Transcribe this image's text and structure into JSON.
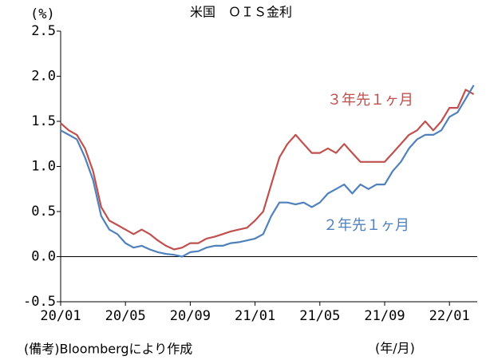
{
  "chart_data": {
    "type": "line",
    "title": "米国　ＯＩＳ金利",
    "y_unit": "(%)",
    "x_unit": "(年/月)",
    "footnote": "(備考)Bloombergにより作成",
    "categories": [
      "20/01",
      null,
      null,
      null,
      null,
      null,
      null,
      null,
      "20/05",
      null,
      null,
      null,
      null,
      null,
      null,
      null,
      "20/09",
      null,
      null,
      null,
      null,
      null,
      null,
      null,
      "21/01",
      null,
      null,
      null,
      null,
      null,
      null,
      null,
      "21/05",
      null,
      null,
      null,
      null,
      null,
      null,
      null,
      "21/09",
      null,
      null,
      null,
      null,
      null,
      null,
      null,
      "22/01",
      null,
      null,
      null
    ],
    "series": [
      {
        "name": "３年先１ヶ月",
        "color": "#c0504d",
        "values": [
          1.48,
          1.4,
          1.35,
          1.2,
          0.95,
          0.55,
          0.4,
          0.35,
          0.3,
          0.25,
          0.3,
          0.25,
          0.18,
          0.12,
          0.08,
          0.1,
          0.15,
          0.15,
          0.2,
          0.22,
          0.25,
          0.28,
          0.3,
          0.32,
          0.4,
          0.5,
          0.8,
          1.1,
          1.25,
          1.35,
          1.25,
          1.15,
          1.15,
          1.2,
          1.15,
          1.25,
          1.15,
          1.05,
          1.05,
          1.05,
          1.05,
          1.15,
          1.25,
          1.35,
          1.4,
          1.5,
          1.4,
          1.5,
          1.65,
          1.65,
          1.85,
          1.8
        ]
      },
      {
        "name": "２年先１ヶ月",
        "color": "#4f81bd",
        "values": [
          1.4,
          1.35,
          1.3,
          1.1,
          0.85,
          0.45,
          0.3,
          0.25,
          0.15,
          0.1,
          0.12,
          0.08,
          0.05,
          0.03,
          0.02,
          0.0,
          0.05,
          0.06,
          0.1,
          0.12,
          0.12,
          0.15,
          0.16,
          0.18,
          0.2,
          0.25,
          0.45,
          0.6,
          0.6,
          0.58,
          0.6,
          0.55,
          0.6,
          0.7,
          0.75,
          0.8,
          0.7,
          0.8,
          0.75,
          0.8,
          0.8,
          0.95,
          1.05,
          1.2,
          1.3,
          1.35,
          1.35,
          1.4,
          1.55,
          1.6,
          1.75,
          1.9
        ]
      }
    ],
    "ylim": [
      -0.5,
      2.5
    ],
    "yticks": [
      -0.5,
      {
        "value": 0,
        "label": "0.0"
      },
      0.5,
      {
        "value": 1,
        "label": "1.0"
      },
      1.5,
      {
        "value": 2,
        "label": "2.0"
      },
      2.5
    ],
    "grid": false
  }
}
